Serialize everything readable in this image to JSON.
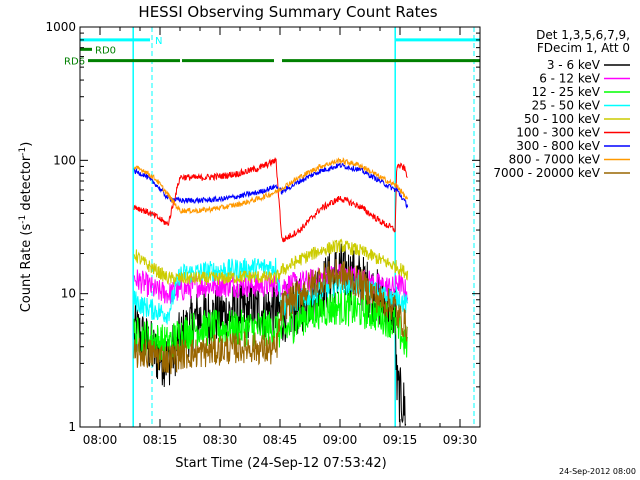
{
  "chart_data": {
    "type": "line",
    "title": "HESSI Observing Summary Count Rates",
    "xlabel": "Start Time (24-Sep-12 07:53:42)",
    "ylabel_main": "Count Rate (s",
    "ylabel_sup1": "-1",
    "ylabel_mid": " detector",
    "ylabel_sup2": "-1",
    "ylabel_end": ")",
    "yscale": "log",
    "ylim": [
      1,
      1000
    ],
    "xlim_minutes": [
      475,
      575
    ],
    "yticks": [
      {
        "v": 1,
        "label": "1"
      },
      {
        "v": 10,
        "label": "10"
      },
      {
        "v": 100,
        "label": "100"
      },
      {
        "v": 1000,
        "label": "1000"
      }
    ],
    "xticks": [
      {
        "m": 480,
        "label": "08:00"
      },
      {
        "m": 495,
        "label": "08:15"
      },
      {
        "m": 510,
        "label": "08:30"
      },
      {
        "m": 525,
        "label": "08:45"
      },
      {
        "m": 540,
        "label": "09:00"
      },
      {
        "m": 555,
        "label": "09:15"
      },
      {
        "m": 570,
        "label": "09:30"
      }
    ],
    "legend_header": [
      "Det 1,3,5,6,7,9,",
      "FDecim 1, Att 0"
    ],
    "legend_position": "right",
    "series": [
      {
        "name": "3 - 6 keV",
        "color": "#000000",
        "points": [
          [
            488.5,
            5.5
          ],
          [
            491,
            4.5
          ],
          [
            494,
            3.5
          ],
          [
            497,
            3.2
          ],
          [
            500,
            4.5
          ],
          [
            504,
            6.5
          ],
          [
            510,
            7
          ],
          [
            517,
            7.5
          ],
          [
            524,
            7.5
          ],
          [
            525.5,
            7
          ],
          [
            530,
            8
          ],
          [
            535,
            11
          ],
          [
            540,
            15
          ],
          [
            545,
            12.5
          ],
          [
            550,
            9
          ],
          [
            553.8,
            7.2
          ],
          [
            554.2,
            2
          ],
          [
            556.5,
            1.3
          ]
        ]
      },
      {
        "name": "6 - 12 keV",
        "color": "#ff00ff",
        "points": [
          [
            488.5,
            13
          ],
          [
            491,
            12
          ],
          [
            494,
            10.5
          ],
          [
            497,
            10
          ],
          [
            500,
            10.5
          ],
          [
            504,
            11.5
          ],
          [
            510,
            11.5
          ],
          [
            517,
            11.5
          ],
          [
            524,
            11.5
          ],
          [
            525.5,
            11.5
          ],
          [
            530,
            12
          ],
          [
            535,
            13
          ],
          [
            540,
            14
          ],
          [
            545,
            13
          ],
          [
            550,
            11.5
          ],
          [
            553.8,
            11
          ],
          [
            554.2,
            12.5
          ],
          [
            557,
            10
          ]
        ]
      },
      {
        "name": "12 - 25 keV",
        "color": "#00ff00",
        "points": [
          [
            488.5,
            5
          ],
          [
            490,
            4.8
          ],
          [
            494,
            4.5
          ],
          [
            497,
            4.2
          ],
          [
            500,
            5
          ],
          [
            504,
            5.5
          ],
          [
            510,
            5.5
          ],
          [
            517,
            5.5
          ],
          [
            524,
            5.5
          ],
          [
            525.5,
            5
          ],
          [
            530,
            6.5
          ],
          [
            535,
            7.5
          ],
          [
            540,
            8
          ],
          [
            545,
            7.5
          ],
          [
            550,
            7
          ],
          [
            553.8,
            6
          ],
          [
            554.2,
            5.5
          ],
          [
            557,
            4
          ]
        ]
      },
      {
        "name": "25 - 50 keV",
        "color": "#00ffff",
        "points": [
          [
            488.5,
            9
          ],
          [
            491,
            8
          ],
          [
            494,
            7.5
          ],
          [
            497,
            7
          ],
          [
            500,
            14
          ],
          [
            505,
            14.5
          ],
          [
            510,
            15
          ],
          [
            517,
            15.5
          ],
          [
            524,
            16
          ],
          [
            525.5,
            8
          ],
          [
            530,
            9
          ],
          [
            535,
            10.5
          ],
          [
            540,
            12
          ],
          [
            545,
            11.5
          ],
          [
            550,
            10
          ],
          [
            553.8,
            9
          ],
          [
            554.2,
            9.5
          ],
          [
            557,
            8
          ]
        ]
      },
      {
        "name": "50 - 100 keV",
        "color": "#cccc00",
        "points": [
          [
            488.5,
            20
          ],
          [
            491,
            17
          ],
          [
            494,
            15
          ],
          [
            497,
            13
          ],
          [
            500,
            13
          ],
          [
            505,
            13
          ],
          [
            510,
            13
          ],
          [
            517,
            13.5
          ],
          [
            524,
            13
          ],
          [
            525.5,
            15
          ],
          [
            530,
            18
          ],
          [
            535,
            21
          ],
          [
            540,
            23
          ],
          [
            545,
            21
          ],
          [
            550,
            18
          ],
          [
            553.8,
            16
          ],
          [
            554.2,
            16
          ],
          [
            557,
            14
          ]
        ]
      },
      {
        "name": "100 - 300 keV",
        "color": "#ff0000",
        "points": [
          [
            488.5,
            45
          ],
          [
            491,
            42
          ],
          [
            494,
            38
          ],
          [
            497,
            33
          ],
          [
            500,
            75
          ],
          [
            505,
            74
          ],
          [
            510,
            76
          ],
          [
            515,
            80
          ],
          [
            520,
            88
          ],
          [
            524,
            100
          ],
          [
            525.5,
            25
          ],
          [
            530,
            30
          ],
          [
            535,
            43
          ],
          [
            540,
            52
          ],
          [
            545,
            45
          ],
          [
            550,
            35
          ],
          [
            553.8,
            30
          ],
          [
            554.2,
            92
          ],
          [
            556,
            88
          ],
          [
            557,
            75
          ]
        ]
      },
      {
        "name": "300 - 800 keV",
        "color": "#0000ff",
        "points": [
          [
            488.5,
            83
          ],
          [
            491,
            78
          ],
          [
            494,
            66
          ],
          [
            497,
            52
          ],
          [
            500,
            50
          ],
          [
            505,
            50
          ],
          [
            510,
            51
          ],
          [
            515,
            54
          ],
          [
            520,
            58
          ],
          [
            524,
            64
          ],
          [
            525.5,
            58
          ],
          [
            530,
            70
          ],
          [
            535,
            83
          ],
          [
            540,
            92
          ],
          [
            545,
            85
          ],
          [
            550,
            70
          ],
          [
            553.8,
            60
          ],
          [
            554.2,
            60
          ],
          [
            557,
            45
          ]
        ]
      },
      {
        "name": "800 - 7000 keV",
        "color": "#ff9900",
        "points": [
          [
            488.5,
            88
          ],
          [
            491,
            84
          ],
          [
            494,
            72
          ],
          [
            497,
            55
          ],
          [
            500,
            42
          ],
          [
            505,
            42
          ],
          [
            510,
            44
          ],
          [
            515,
            47
          ],
          [
            520,
            52
          ],
          [
            524,
            58
          ],
          [
            525.5,
            62
          ],
          [
            530,
            75
          ],
          [
            535,
            90
          ],
          [
            540,
            100
          ],
          [
            545,
            92
          ],
          [
            550,
            75
          ],
          [
            553.8,
            65
          ],
          [
            554.2,
            65
          ],
          [
            557,
            50
          ]
        ]
      },
      {
        "name": "7000 - 20000 keV",
        "color": "#996600",
        "points": [
          [
            488.5,
            3.5
          ],
          [
            491,
            3.6
          ],
          [
            494,
            3.5
          ],
          [
            497,
            3.2
          ],
          [
            500,
            3.5
          ],
          [
            505,
            3.6
          ],
          [
            510,
            3.8
          ],
          [
            517,
            4
          ],
          [
            524,
            3.7
          ],
          [
            525.5,
            8
          ],
          [
            530,
            10
          ],
          [
            535,
            13
          ],
          [
            540,
            14
          ],
          [
            545,
            12
          ],
          [
            550,
            9
          ],
          [
            553.8,
            8
          ],
          [
            554.2,
            7
          ],
          [
            557,
            5.5
          ]
        ]
      }
    ],
    "flag_bars": [
      {
        "label": "N",
        "color": "#00ffff",
        "y": 800,
        "segments": [
          [
            475,
            492.5
          ],
          [
            554,
            575
          ]
        ]
      },
      {
        "label": "RD0",
        "color": "#008000",
        "y": 680,
        "segments": [
          [
            475,
            478
          ]
        ]
      },
      {
        "label": "RD6",
        "color": "#008000",
        "y": 560,
        "segments": [
          [
            477,
            500
          ],
          [
            500.5,
            523.5
          ],
          [
            525.5,
            554
          ],
          [
            554,
            575
          ]
        ]
      }
    ],
    "saa_lines_minutes": [
      488.3,
      553.8
    ],
    "night_lines_minutes": [
      493,
      573.5
    ],
    "timestamp": "24-Sep-2012 08:00"
  }
}
